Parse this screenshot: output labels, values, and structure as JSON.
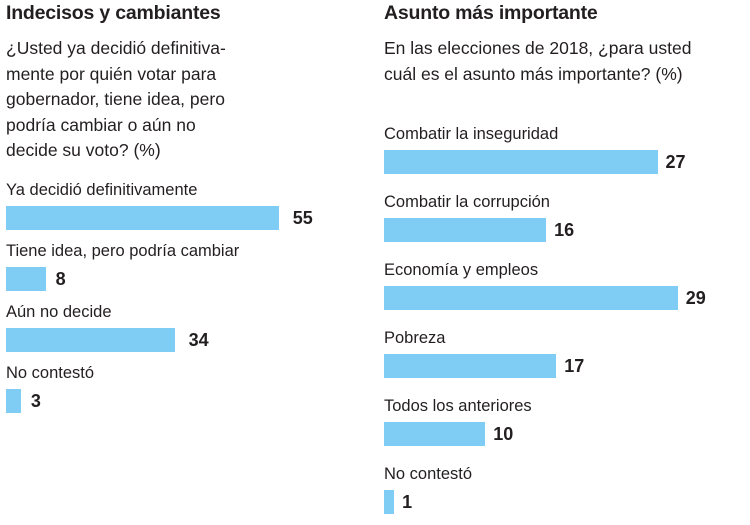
{
  "colors": {
    "bar": "#7fcdf4",
    "text": "#231f20"
  },
  "chart_data": [
    {
      "type": "bar",
      "orientation": "horizontal",
      "title": "Indecisos y cambiantes",
      "subtitle_lines": [
        "¿Usted ya decidió definitiva-",
        "mente por quién votar para",
        "gobernador, tiene idea, pero",
        "podría cambiar o aún no",
        "decide su voto? (%)"
      ],
      "categories": [
        "Ya decidió definitivamente",
        "Tiene idea, pero podría cambiar",
        "Aún no decide",
        "No contestó"
      ],
      "values": [
        55,
        8,
        34,
        3
      ],
      "value_labels": [
        "55",
        "8",
        "34",
        "3"
      ],
      "unit": "%",
      "xlim": [
        0,
        55
      ],
      "grid": false,
      "legend": "none"
    },
    {
      "type": "bar",
      "orientation": "horizontal",
      "title": "Asunto más importante",
      "subtitle_lines": [
        "En las elecciones de 2018, ¿para usted",
        "cuál es el asunto más importante? (%)"
      ],
      "categories": [
        "Combatir la inseguridad",
        "Combatir la corrupción",
        "Economía y empleos",
        "Pobreza",
        "Todos los anteriores",
        "No contestó"
      ],
      "values": [
        27,
        16,
        29,
        17,
        10,
        1
      ],
      "value_labels": [
        "27",
        "16",
        "29",
        "17",
        "10",
        "1"
      ],
      "unit": "%",
      "xlim": [
        0,
        29
      ],
      "grid": false,
      "legend": "none"
    }
  ]
}
